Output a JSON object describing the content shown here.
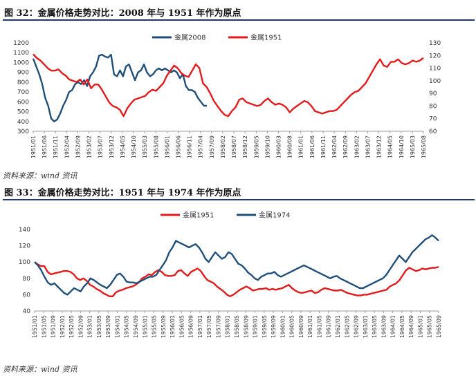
{
  "page": {
    "figure1_title": "图 32：金属价格走势对比：2008 年与 1951 年作为原点",
    "figure1_source": "资料来源：wind 资讯",
    "figure2_title": "图 33：金属价格走势对比：1951 年与 1974 年作为原点",
    "figure2_source": "资料来源：wind 资讯"
  },
  "chart_data": [
    {
      "type": "line",
      "title": "图 32：金属价格走势对比：2008 年与 1951 年作为原点",
      "legend_position": "top-center",
      "grid": false,
      "x_tick_labels": [
        "1951/01",
        "1951/06",
        "1951/11",
        "1952/04",
        "1952/09",
        "1953/02",
        "1953/07",
        "1953/12",
        "1954/05",
        "1954/10",
        "1955/03",
        "1955/08",
        "1956/01",
        "1956/06",
        "1956/11",
        "1957/04",
        "1957/09",
        "1958/02",
        "1958/07",
        "1958/12",
        "1959/05",
        "1959/10",
        "1960/03",
        "1960/08",
        "1961/01",
        "1961/06",
        "1961/11",
        "1962/04",
        "1962/09",
        "1963/02",
        "1963/07",
        "1963/12",
        "1964/05",
        "1964/10",
        "1965/03",
        "1965/08"
      ],
      "y_left": {
        "ticks": [
          300,
          400,
          500,
          600,
          700,
          800,
          900,
          1000,
          1100,
          1200
        ],
        "range": [
          300,
          1200
        ]
      },
      "y_right": {
        "ticks": [
          60,
          70,
          80,
          90,
          100,
          110,
          120,
          130
        ],
        "range": [
          60,
          130
        ]
      },
      "series": [
        {
          "name": "金属2008",
          "axis": "left",
          "color": "#1f4e79",
          "values": [
            1040,
            960,
            880,
            780,
            640,
            560,
            430,
            400,
            420,
            480,
            560,
            620,
            700,
            720,
            780,
            800,
            780,
            820,
            760,
            860,
            900,
            960,
            1070,
            1080,
            1060,
            1050,
            1080,
            880,
            860,
            920,
            860,
            960,
            980,
            900,
            820,
            900,
            920,
            980,
            900,
            860,
            880,
            920,
            940,
            920,
            940,
            920,
            900,
            920,
            900,
            840,
            880,
            760,
            720,
            720,
            700,
            640,
            600,
            560,
            560
          ]
        },
        {
          "name": "金属1951",
          "axis": "right",
          "color": "#e31a1c",
          "values": [
            121,
            118,
            116,
            113,
            110,
            108,
            108,
            109,
            106,
            104,
            101,
            100,
            99,
            101,
            97,
            101,
            94,
            97,
            97,
            93,
            88,
            83,
            80,
            79,
            77,
            72,
            78,
            82,
            85,
            86,
            87,
            88,
            91,
            93,
            92,
            95,
            98,
            104,
            108,
            112,
            110,
            106,
            104,
            103,
            108,
            113,
            110,
            98,
            95,
            90,
            84,
            80,
            76,
            73,
            72,
            76,
            79,
            85,
            86,
            83,
            82,
            81,
            80,
            81,
            84,
            86,
            83,
            81,
            82,
            81,
            79,
            75,
            78,
            80,
            82,
            84,
            83,
            80,
            76,
            75,
            74,
            75,
            76,
            76,
            77,
            80,
            83,
            86,
            89,
            91,
            92,
            95,
            98,
            103,
            108,
            113,
            117,
            112,
            111,
            115,
            115,
            117,
            114,
            113,
            114,
            116,
            115,
            116,
            118
          ]
        }
      ]
    },
    {
      "type": "line",
      "title": "图 33：金属价格走势对比：1951 年与 1974 年作为原点",
      "legend_position": "top-center",
      "grid": false,
      "x_tick_labels": [
        "1951/01",
        "1951/05",
        "1951/09",
        "1952/01",
        "1952/05",
        "1952/09",
        "1953/01",
        "1953/05",
        "1953/09",
        "1954/01",
        "1954/05",
        "1954/09",
        "1955/01",
        "1955/05",
        "1955/09",
        "1956/01",
        "1956/05",
        "1956/09",
        "1957/01",
        "1957/05",
        "1957/09",
        "1958/01",
        "1958/05",
        "1958/09",
        "1959/01",
        "1959/05",
        "1959/09",
        "1960/01",
        "1960/05",
        "1960/09",
        "1961/01",
        "1961/05",
        "1961/09",
        "1962/01",
        "1962/05",
        "1962/09",
        "1963/01",
        "1963/05",
        "1963/09",
        "1964/01",
        "1964/05",
        "1964/09",
        "1965/01",
        "1965/05",
        "1965/09"
      ],
      "y": {
        "ticks": [
          40,
          60,
          80,
          100,
          120,
          140
        ],
        "range": [
          40,
          140
        ]
      },
      "series": [
        {
          "name": "金属1951",
          "color": "#e31a1c",
          "values": [
            100,
            97,
            95,
            95,
            88,
            85,
            86,
            87,
            88,
            89,
            89,
            88,
            85,
            80,
            78,
            80,
            77,
            72,
            70,
            67,
            65,
            62,
            60,
            58,
            58,
            63,
            65,
            66,
            68,
            69,
            70,
            72,
            75,
            80,
            82,
            85,
            84,
            88,
            90,
            88,
            84,
            83,
            83,
            84,
            89,
            90,
            86,
            83,
            88,
            90,
            92,
            89,
            83,
            78,
            76,
            74,
            70,
            67,
            64,
            60,
            58,
            60,
            63,
            66,
            68,
            70,
            68,
            65,
            66,
            67,
            67,
            68,
            66,
            67,
            66,
            67,
            68,
            70,
            72,
            68,
            65,
            63,
            62,
            63,
            64,
            65,
            62,
            63,
            66,
            68,
            67,
            66,
            65,
            65,
            66,
            64,
            62,
            61,
            60,
            59,
            59,
            60,
            60,
            61,
            62,
            63,
            64,
            65,
            66,
            70,
            72,
            74,
            78,
            84,
            90,
            93,
            91,
            89,
            90,
            92,
            91,
            92,
            93,
            93,
            94
          ]
        },
        {
          "name": "金属1974",
          "color": "#1f4e79",
          "values": [
            100,
            96,
            90,
            82,
            75,
            72,
            74,
            70,
            66,
            62,
            60,
            64,
            68,
            66,
            64,
            70,
            74,
            80,
            78,
            75,
            72,
            70,
            68,
            72,
            78,
            84,
            86,
            82,
            76,
            75,
            75,
            74,
            76,
            78,
            80,
            82,
            82,
            84,
            90,
            96,
            102,
            112,
            118,
            126,
            124,
            122,
            120,
            118,
            120,
            122,
            118,
            112,
            104,
            100,
            106,
            112,
            108,
            104,
            106,
            112,
            110,
            104,
            98,
            96,
            92,
            87,
            84,
            80,
            78,
            82,
            84,
            86,
            86,
            88,
            84,
            82,
            84,
            86,
            88,
            90,
            92,
            94,
            96,
            94,
            92,
            90,
            88,
            86,
            84,
            82,
            80,
            82,
            83,
            80,
            78,
            76,
            74,
            72,
            70,
            68,
            68,
            70,
            72,
            74,
            76,
            78,
            80,
            84,
            90,
            96,
            102,
            108,
            104,
            100,
            106,
            112,
            116,
            120,
            124,
            128,
            130,
            133,
            130,
            126
          ]
        }
      ]
    }
  ]
}
